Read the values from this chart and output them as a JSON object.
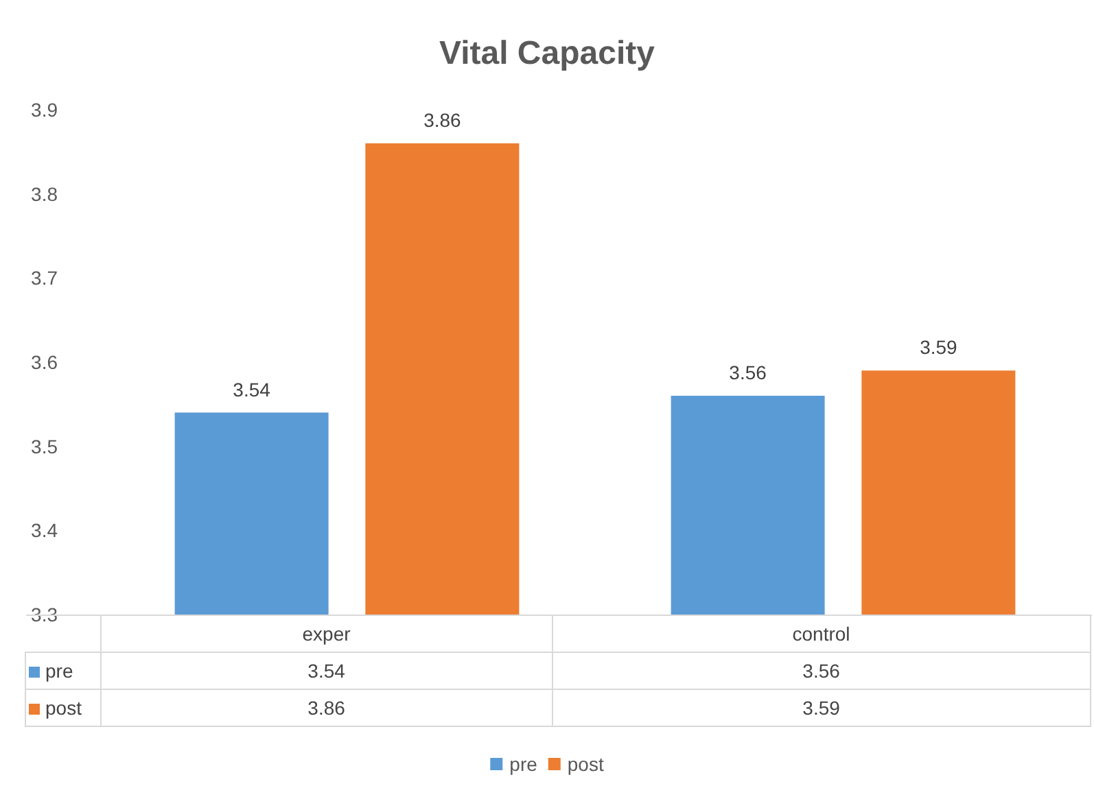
{
  "chart_data": {
    "type": "bar",
    "title": "Vital Capacity",
    "categories": [
      "exper",
      "control"
    ],
    "series": [
      {
        "name": "pre",
        "color": "#5b9bd5",
        "values": [
          3.54,
          3.56
        ]
      },
      {
        "name": "post",
        "color": "#ed7d31",
        "values": [
          3.86,
          3.59
        ]
      }
    ],
    "ylim": [
      3.3,
      3.9
    ],
    "yticks": [
      3.3,
      3.4,
      3.5,
      3.6,
      3.7,
      3.8,
      3.9
    ],
    "grid": false,
    "legend": "bottom",
    "data_labels": true,
    "annotations": [
      "3.54",
      "3.56",
      "3.86",
      "3.59"
    ]
  }
}
